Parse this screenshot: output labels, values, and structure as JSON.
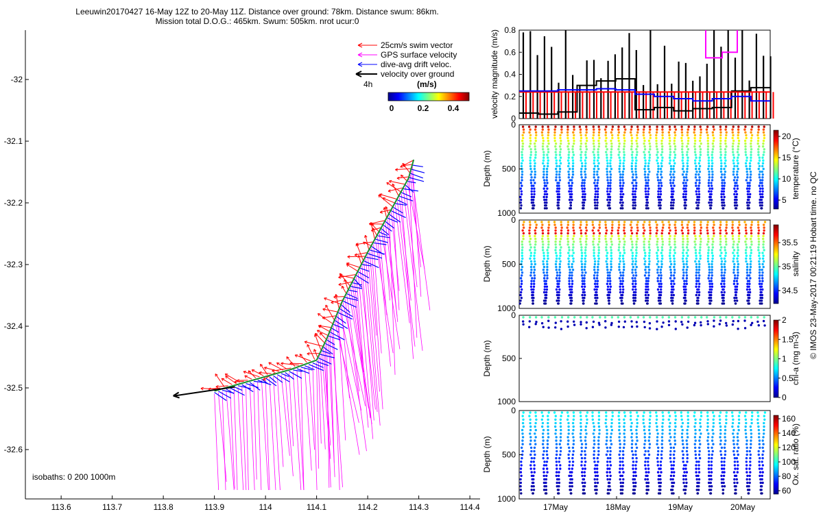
{
  "title": {
    "line1": "Leeuwin20170427 16-May 12Z to 20-May 11Z. Distance over ground: 78km. Distance swum: 86km.",
    "line2": "Mission total D.O.G.: 465km. Swum: 505km. nrot ucur:0"
  },
  "colors": {
    "swim": "#ff0000",
    "gps": "#ff00ff",
    "drift": "#0000ff",
    "ground": "#000000",
    "velocity_black": "#000000",
    "velocity_red": "#ff0000",
    "velocity_blue": "#0000ff",
    "velocity_magenta": "#ff00ff"
  },
  "chart_data": [
    {
      "id": "map",
      "type": "vector-map",
      "xlim": [
        113.53,
        114.42
      ],
      "ylim": [
        -32.68,
        -31.92
      ],
      "xticks": [
        "113.6",
        "113.7",
        "113.8",
        "113.9",
        "114",
        "114.1",
        "114.2",
        "114.3",
        "114.4"
      ],
      "yticks": [
        "-32",
        "-32.1",
        "-32.2",
        "-32.3",
        "-32.4",
        "-32.5",
        "-32.6"
      ],
      "legend": {
        "entries": [
          "25cm/s swim vector",
          "GPS surface velocity",
          "dive-avg drift veloc.",
          "velocity over ground"
        ],
        "ground_duration": "4h",
        "colorbar_label": "(m/s)",
        "colorbar_ticks": [
          "0",
          "0.2",
          "0.4"
        ]
      },
      "isobaths_text": "isobaths: 0   200  1000m",
      "track": [
        [
          113.9,
          -32.505
        ],
        [
          114.05,
          -32.47
        ],
        [
          114.1,
          -32.455
        ],
        [
          114.12,
          -32.42
        ],
        [
          114.15,
          -32.36
        ],
        [
          114.2,
          -32.28
        ],
        [
          114.25,
          -32.205
        ],
        [
          114.28,
          -32.16
        ],
        [
          114.29,
          -32.13
        ]
      ]
    },
    {
      "id": "velocity",
      "type": "line",
      "ylabel": "velocity magnitude (m/s)",
      "ylim": [
        0,
        0.8
      ],
      "yticks": [
        "0",
        "0.2",
        "0.4",
        "0.6",
        "0.8"
      ],
      "series": [
        {
          "color": "velocity_black",
          "values": [
            0.05,
            0.04,
            0.06,
            0.3,
            0.34,
            0.36,
            0.08,
            0.1,
            0.07,
            0.09,
            0.1,
            0.25,
            0.28
          ]
        },
        {
          "color": "velocity_red",
          "values": [
            0.24,
            0.24,
            0.24,
            0.24,
            0.24,
            0.24,
            0.24,
            0.24,
            0.24,
            0.24,
            0.24,
            0.24,
            0.24
          ]
        },
        {
          "color": "velocity_blue",
          "values": [
            0.25,
            0.25,
            0.26,
            0.26,
            0.27,
            0.26,
            0.22,
            0.2,
            0.18,
            0.16,
            0.18,
            0.2,
            0.16
          ]
        }
      ]
    },
    {
      "id": "temperature",
      "type": "scatter",
      "ylabel": "Depth (m)",
      "yticks": [
        "0",
        "500",
        "1000"
      ],
      "colorbar_label": "temperature (°C)",
      "colorbar_ticks": [
        "20",
        "15",
        "10",
        "5"
      ],
      "colormap": "jet"
    },
    {
      "id": "salinity",
      "type": "scatter",
      "ylabel": "Depth (m)",
      "yticks": [
        "0",
        "500",
        "1000"
      ],
      "colorbar_label": "salinity",
      "colorbar_ticks": [
        "35.5",
        "35",
        "34.5"
      ],
      "colormap": "jet"
    },
    {
      "id": "chla",
      "type": "scatter",
      "ylabel": "Depth (m)",
      "yticks": [
        "0",
        "500",
        "1000"
      ],
      "colorbar_label": "chl-a (mg m-3)",
      "colorbar_ticks": [
        "2",
        "1.5",
        "1",
        "0.5",
        "0"
      ],
      "colormap": "jet"
    },
    {
      "id": "oxygen",
      "type": "scatter",
      "ylabel": "Depth (m)",
      "yticks": [
        "0",
        "500",
        "1000"
      ],
      "colorbar_label": "Ox. sat. ratio (%)",
      "colorbar_ticks": [
        "160",
        "140",
        "120",
        "100",
        "80",
        "60"
      ],
      "colormap": "jet",
      "xticks": [
        "17May",
        "18May",
        "19May",
        "20May"
      ]
    }
  ],
  "watermark": "© IMOS 23-May-2017 00:21:19 Hobart time. no QC"
}
